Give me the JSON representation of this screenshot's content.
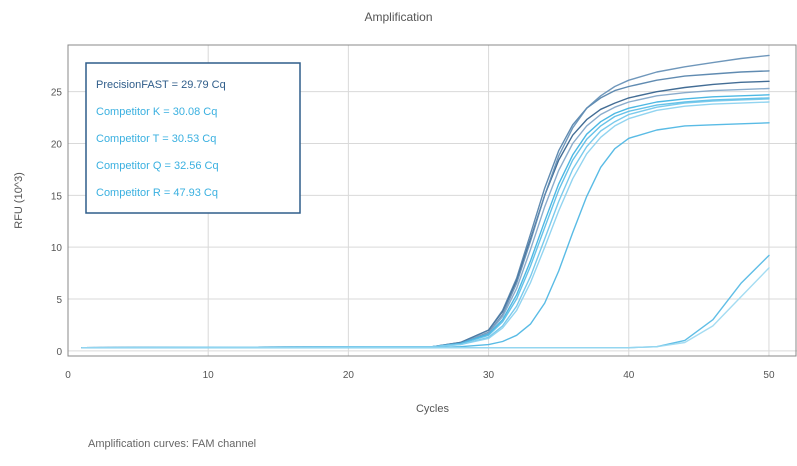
{
  "caption": "Amplification curves: FAM channel",
  "chart_data": {
    "type": "line",
    "title": "Amplification",
    "xlabel": "Cycles",
    "ylabel": "RFU (10^3)",
    "xlim": [
      0,
      52
    ],
    "ylim": [
      -0.5,
      29.5
    ],
    "xticks": [
      0,
      10,
      20,
      30,
      40,
      50
    ],
    "yticks": [
      0,
      5,
      10,
      15,
      20,
      25
    ],
    "grid": true,
    "legend": {
      "placement": "top-left",
      "entries": [
        {
          "label": "PrecisionFAST = 29.79 Cq",
          "color": "#2f5d8a"
        },
        {
          "label": "Competitor K = 30.08 Cq",
          "color": "#3ab0e0"
        },
        {
          "label": "Competitor T = 30.53 Cq",
          "color": "#3ab0e0"
        },
        {
          "label": "Competitor Q = 32.56 Cq",
          "color": "#3ab0e0"
        },
        {
          "label": "Competitor R = 47.93 Cq",
          "color": "#3ab0e0"
        }
      ]
    },
    "x": [
      1,
      26,
      28,
      30,
      31,
      32,
      33,
      34,
      35,
      36,
      37,
      38,
      39,
      40,
      42,
      44,
      46,
      48,
      50
    ],
    "series": [
      {
        "color": "#2f5d8a",
        "values": [
          0.3,
          0.4,
          0.8,
          2.0,
          3.8,
          6.8,
          10.8,
          15.0,
          18.4,
          20.8,
          22.3,
          23.3,
          23.9,
          24.4,
          25.0,
          25.4,
          25.7,
          25.9,
          26.0
        ]
      },
      {
        "color": "#4f7ea8",
        "values": [
          0.3,
          0.4,
          0.8,
          2.0,
          3.9,
          7.0,
          11.3,
          15.7,
          19.3,
          21.8,
          23.4,
          24.4,
          25.1,
          25.5,
          26.1,
          26.5,
          26.7,
          26.9,
          27.0
        ]
      },
      {
        "color": "#5f8cb4",
        "values": [
          0.3,
          0.4,
          0.7,
          1.8,
          3.5,
          6.5,
          10.6,
          15.0,
          18.8,
          21.5,
          23.4,
          24.6,
          25.5,
          26.1,
          26.9,
          27.4,
          27.8,
          28.2,
          28.5
        ]
      },
      {
        "color": "#7ea3c6",
        "values": [
          0.3,
          0.4,
          0.7,
          1.7,
          3.3,
          6.0,
          9.8,
          13.9,
          17.4,
          20.0,
          21.7,
          22.8,
          23.5,
          24.0,
          24.6,
          24.9,
          25.1,
          25.2,
          25.3
        ]
      },
      {
        "color": "#3ab0e0",
        "values": [
          0.3,
          0.4,
          0.7,
          1.6,
          3.0,
          5.4,
          8.7,
          12.5,
          16.1,
          18.9,
          20.9,
          22.1,
          22.9,
          23.4,
          24.0,
          24.3,
          24.5,
          24.6,
          24.7
        ]
      },
      {
        "color": "#55bbe6",
        "values": [
          0.3,
          0.4,
          0.7,
          1.5,
          2.8,
          5.0,
          8.2,
          11.9,
          15.5,
          18.4,
          20.4,
          21.7,
          22.6,
          23.1,
          23.7,
          24.0,
          24.2,
          24.3,
          24.4
        ]
      },
      {
        "color": "#6cc4ea",
        "values": [
          0.3,
          0.4,
          0.6,
          1.3,
          2.4,
          4.3,
          7.2,
          10.8,
          14.4,
          17.5,
          19.7,
          21.2,
          22.1,
          22.8,
          23.5,
          23.9,
          24.1,
          24.2,
          24.3
        ]
      },
      {
        "color": "#86cfee",
        "values": [
          0.3,
          0.4,
          0.6,
          1.2,
          2.2,
          3.9,
          6.6,
          10.0,
          13.5,
          16.6,
          19.0,
          20.6,
          21.7,
          22.4,
          23.2,
          23.6,
          23.8,
          23.9,
          24.0
        ]
      },
      {
        "color": "#47b4e2",
        "values": [
          0.3,
          0.3,
          0.4,
          0.6,
          0.9,
          1.5,
          2.6,
          4.6,
          7.7,
          11.4,
          14.9,
          17.7,
          19.5,
          20.5,
          21.3,
          21.7,
          21.8,
          21.9,
          22.0
        ]
      },
      {
        "color": "#4fb7e3",
        "values": [
          0.3,
          0.3,
          0.3,
          0.3,
          0.3,
          0.3,
          0.3,
          0.3,
          0.3,
          0.3,
          0.3,
          0.3,
          0.3,
          0.3,
          0.4,
          1.0,
          3.0,
          6.5,
          9.2
        ]
      },
      {
        "color": "#9ad8f1",
        "values": [
          0.3,
          0.3,
          0.3,
          0.3,
          0.3,
          0.3,
          0.3,
          0.3,
          0.3,
          0.3,
          0.3,
          0.3,
          0.3,
          0.3,
          0.4,
          0.8,
          2.4,
          5.2,
          8.0
        ]
      }
    ]
  }
}
